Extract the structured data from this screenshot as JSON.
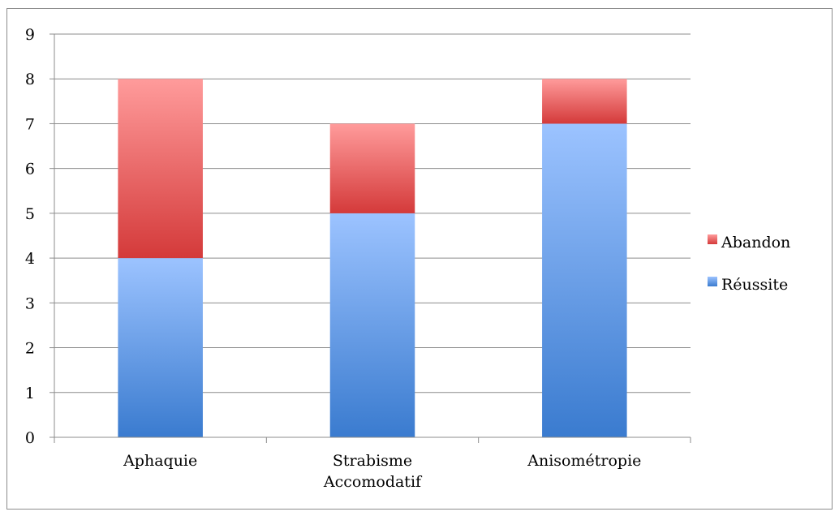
{
  "chart_data": {
    "type": "bar",
    "stacked": true,
    "title": "",
    "xlabel": "",
    "ylabel": "",
    "categories": [
      [
        "Aphaquie"
      ],
      [
        "Strabisme",
        "Accomodatif"
      ],
      [
        "Anisométropie"
      ]
    ],
    "series": [
      {
        "name": "Réussite",
        "values": [
          4,
          5,
          7
        ],
        "color_top": "#9cc3ff",
        "color_bottom": "#3a7bcf"
      },
      {
        "name": "Abandon",
        "values": [
          4,
          2,
          1
        ],
        "color_top": "#ff9b9b",
        "color_bottom": "#d43a3a"
      }
    ],
    "ylim": [
      0,
      9
    ],
    "yticks": [
      "0",
      "1",
      "2",
      "3",
      "4",
      "5",
      "6",
      "7",
      "8",
      "9"
    ],
    "grid": true,
    "legend": {
      "position": "right",
      "order": [
        "Abandon",
        "Réussite"
      ]
    }
  }
}
